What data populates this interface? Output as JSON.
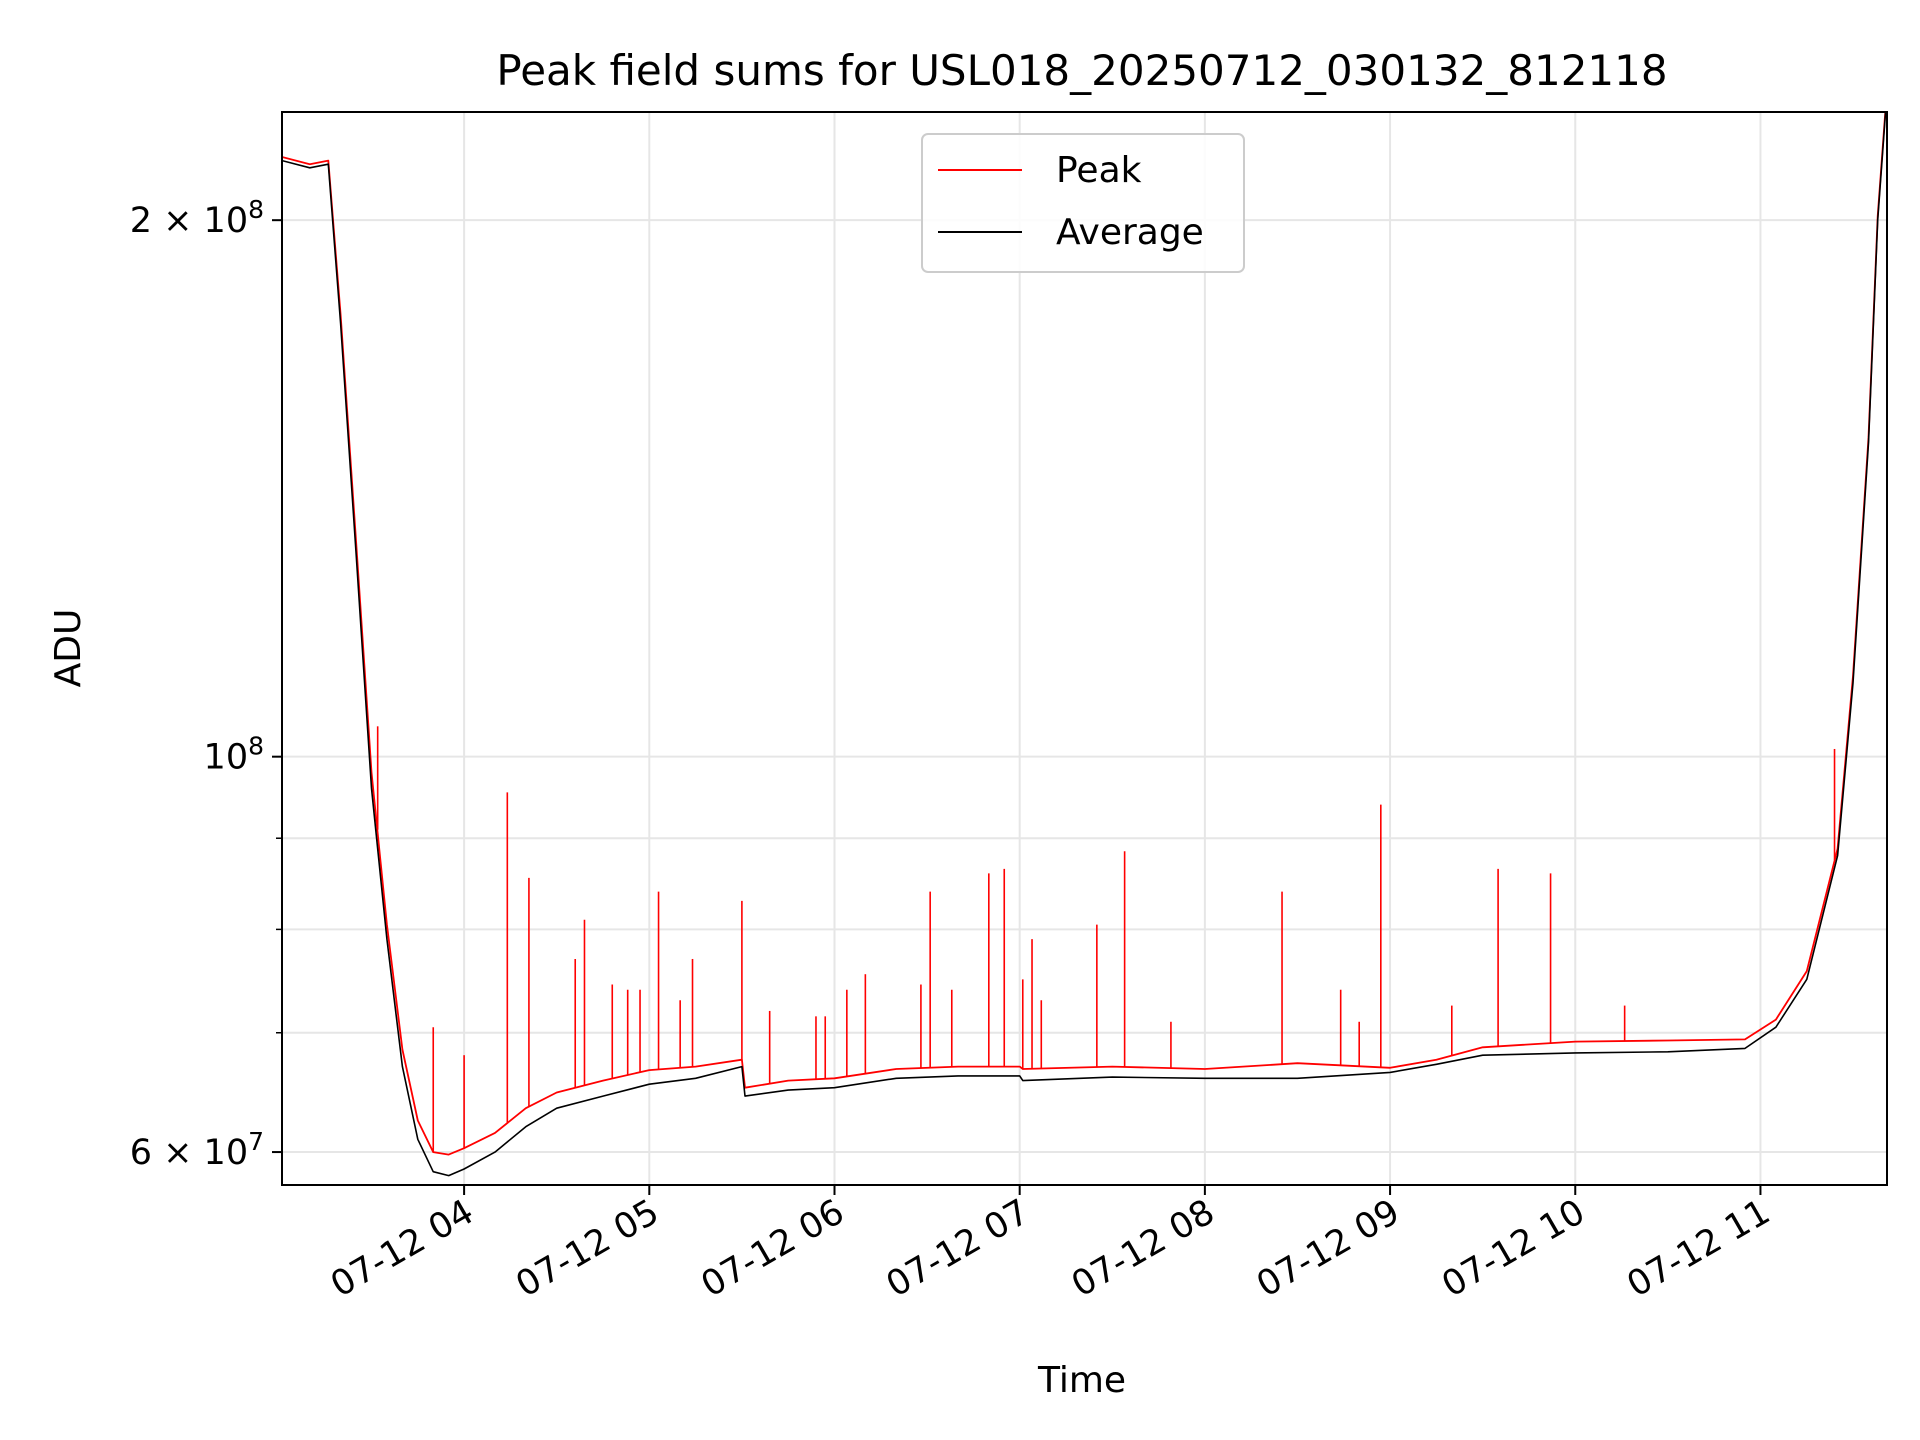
{
  "chart_data": {
    "type": "line",
    "title": "Peak field sums for USL018_20250712_030132_812118",
    "xlabel": "Time",
    "ylabel": "ADU",
    "yscale": "log",
    "xlim": [
      "2025-07-12 03:01",
      "2025-07-12 11:41"
    ],
    "ylim": [
      57500000,
      230000000
    ],
    "x_ticks": [
      {
        "value": "2025-07-12 04:00",
        "label": "07-12 04"
      },
      {
        "value": "2025-07-12 05:00",
        "label": "07-12 05"
      },
      {
        "value": "2025-07-12 06:00",
        "label": "07-12 06"
      },
      {
        "value": "2025-07-12 07:00",
        "label": "07-12 07"
      },
      {
        "value": "2025-07-12 08:00",
        "label": "07-12 08"
      },
      {
        "value": "2025-07-12 09:00",
        "label": "07-12 09"
      },
      {
        "value": "2025-07-12 10:00",
        "label": "07-12 10"
      },
      {
        "value": "2025-07-12 11:00",
        "label": "07-12 11"
      }
    ],
    "y_major_ticks": [
      {
        "value": 60000000,
        "label": "6 × 10^7"
      },
      {
        "value": 100000000,
        "label": "10^8"
      },
      {
        "value": 200000000,
        "label": "2 × 10^8"
      }
    ],
    "y_minor_ticks": [
      70000000,
      80000000,
      90000000
    ],
    "grid": true,
    "legend": {
      "position": "top-center",
      "entries": [
        "Peak",
        "Average"
      ]
    },
    "series": [
      {
        "name": "Average",
        "color": "#000000",
        "x": [
          "2025-07-12 03:01",
          "2025-07-12 03:10",
          "2025-07-12 03:16",
          "2025-07-12 03:20",
          "2025-07-12 03:25",
          "2025-07-12 03:30",
          "2025-07-12 03:35",
          "2025-07-12 03:40",
          "2025-07-12 03:45",
          "2025-07-12 03:50",
          "2025-07-12 03:55",
          "2025-07-12 04:00",
          "2025-07-12 04:10",
          "2025-07-12 04:20",
          "2025-07-12 04:30",
          "2025-07-12 04:45",
          "2025-07-12 05:00",
          "2025-07-12 05:15",
          "2025-07-12 05:30",
          "2025-07-12 05:31",
          "2025-07-12 05:45",
          "2025-07-12 06:00",
          "2025-07-12 06:20",
          "2025-07-12 06:40",
          "2025-07-12 07:00",
          "2025-07-12 07:01",
          "2025-07-12 07:30",
          "2025-07-12 08:00",
          "2025-07-12 08:30",
          "2025-07-12 09:00",
          "2025-07-12 09:15",
          "2025-07-12 09:30",
          "2025-07-12 10:00",
          "2025-07-12 10:30",
          "2025-07-12 10:55",
          "2025-07-12 11:05",
          "2025-07-12 11:15",
          "2025-07-12 11:25",
          "2025-07-12 11:30",
          "2025-07-12 11:35",
          "2025-07-12 11:38",
          "2025-07-12 11:41"
        ],
        "y": [
          216000000,
          214000000,
          215000000,
          175000000,
          130000000,
          96000000,
          79000000,
          67000000,
          61000000,
          58500000,
          58200000,
          58700000,
          60000000,
          62000000,
          63500000,
          64500000,
          65500000,
          66000000,
          67000000,
          64500000,
          65000000,
          65200000,
          66000000,
          66200000,
          66200000,
          65800000,
          66100000,
          66000000,
          66000000,
          66500000,
          67200000,
          68000000,
          68200000,
          68300000,
          68600000,
          70500000,
          75000000,
          88000000,
          110000000,
          150000000,
          200000000,
          236000000
        ]
      },
      {
        "name": "Peak",
        "color": "#ff0000",
        "x": [
          "2025-07-12 03:01",
          "2025-07-12 03:10",
          "2025-07-12 03:16",
          "2025-07-12 03:20",
          "2025-07-12 03:25",
          "2025-07-12 03:30",
          "2025-07-12 03:35",
          "2025-07-12 03:40",
          "2025-07-12 03:45",
          "2025-07-12 03:50",
          "2025-07-12 03:55",
          "2025-07-12 04:00",
          "2025-07-12 04:10",
          "2025-07-12 04:20",
          "2025-07-12 04:30",
          "2025-07-12 04:45",
          "2025-07-12 05:00",
          "2025-07-12 05:15",
          "2025-07-12 05:30",
          "2025-07-12 05:31",
          "2025-07-12 05:45",
          "2025-07-12 06:00",
          "2025-07-12 06:20",
          "2025-07-12 06:40",
          "2025-07-12 07:00",
          "2025-07-12 07:01",
          "2025-07-12 07:30",
          "2025-07-12 08:00",
          "2025-07-12 08:30",
          "2025-07-12 09:00",
          "2025-07-12 09:15",
          "2025-07-12 09:30",
          "2025-07-12 10:00",
          "2025-07-12 10:30",
          "2025-07-12 10:55",
          "2025-07-12 11:05",
          "2025-07-12 11:15",
          "2025-07-12 11:25",
          "2025-07-12 11:30",
          "2025-07-12 11:35",
          "2025-07-12 11:38",
          "2025-07-12 11:41"
        ],
        "y": [
          217000000,
          215000000,
          216000000,
          177000000,
          132000000,
          98000000,
          80500000,
          68500000,
          62500000,
          60000000,
          59800000,
          60300000,
          61500000,
          63500000,
          64800000,
          65800000,
          66700000,
          67000000,
          67600000,
          65200000,
          65800000,
          66000000,
          66800000,
          67000000,
          67000000,
          66800000,
          67000000,
          66800000,
          67300000,
          66900000,
          67600000,
          68700000,
          69200000,
          69300000,
          69400000,
          71200000,
          75800000,
          88800000,
          111000000,
          151000000,
          201000000,
          237000000
        ],
        "spikes": [
          [
            "2025-07-12 03:32",
            104000000
          ],
          [
            "2025-07-12 03:50",
            70500000
          ],
          [
            "2025-07-12 04:00",
            68000000
          ],
          [
            "2025-07-12 04:14",
            95500000
          ],
          [
            "2025-07-12 04:21",
            85500000
          ],
          [
            "2025-07-12 04:36",
            77000000
          ],
          [
            "2025-07-12 04:39",
            81000000
          ],
          [
            "2025-07-12 04:48",
            74500000
          ],
          [
            "2025-07-12 04:53",
            74000000
          ],
          [
            "2025-07-12 04:57",
            74000000
          ],
          [
            "2025-07-12 05:03",
            84000000
          ],
          [
            "2025-07-12 05:10",
            73000000
          ],
          [
            "2025-07-12 05:14",
            77000000
          ],
          [
            "2025-07-12 05:30",
            83000000
          ],
          [
            "2025-07-12 05:39",
            72000000
          ],
          [
            "2025-07-12 05:54",
            71500000
          ],
          [
            "2025-07-12 05:57",
            71500000
          ],
          [
            "2025-07-12 06:04",
            74000000
          ],
          [
            "2025-07-12 06:10",
            75500000
          ],
          [
            "2025-07-12 06:28",
            74500000
          ],
          [
            "2025-07-12 06:31",
            84000000
          ],
          [
            "2025-07-12 06:38",
            74000000
          ],
          [
            "2025-07-12 06:50",
            86000000
          ],
          [
            "2025-07-12 06:55",
            86500000
          ],
          [
            "2025-07-12 07:01",
            75000000
          ],
          [
            "2025-07-12 07:04",
            79000000
          ],
          [
            "2025-07-12 07:07",
            73000000
          ],
          [
            "2025-07-12 07:25",
            80500000
          ],
          [
            "2025-07-12 07:34",
            88500000
          ],
          [
            "2025-07-12 07:49",
            71000000
          ],
          [
            "2025-07-12 08:25",
            84000000
          ],
          [
            "2025-07-12 08:44",
            74000000
          ],
          [
            "2025-07-12 08:50",
            71000000
          ],
          [
            "2025-07-12 08:57",
            94000000
          ],
          [
            "2025-07-12 09:20",
            72500000
          ],
          [
            "2025-07-12 09:35",
            86500000
          ],
          [
            "2025-07-12 09:52",
            86000000
          ],
          [
            "2025-07-12 10:16",
            72500000
          ],
          [
            "2025-07-12 11:24",
            101000000
          ]
        ]
      }
    ]
  }
}
